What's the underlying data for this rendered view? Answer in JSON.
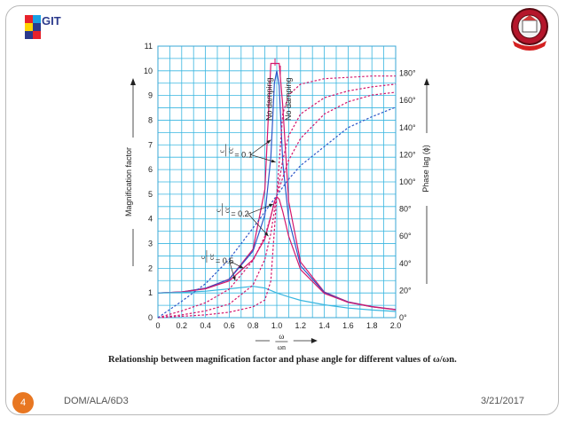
{
  "slide": {
    "number": "4",
    "footer_left": "DOM/ALA/6D3",
    "footer_date": "3/21/2017",
    "caption": "Relationship between magnification factor and phase angle for different values of ω/ωn."
  },
  "logo": {
    "text": "GIT"
  },
  "colors": {
    "grid": "#38b6e0",
    "magenta": "#d4176c",
    "blue": "#2d57c8",
    "accent": "#e87722"
  },
  "chart_data": {
    "type": "line",
    "xlabel_num": "ω",
    "xlabel_den": "ωn",
    "ylabel_left": "Magnification factor",
    "ylabel_right": "Phase lag (ϕ)",
    "xlim": [
      0,
      2.0
    ],
    "ylim_left": [
      0,
      11
    ],
    "ylim_right": [
      0,
      200
    ],
    "x_ticks": [
      "0",
      "0.2",
      "0.4",
      "0.6",
      "0.8",
      "1.0",
      "1.2",
      "1.4",
      "1.6",
      "1.8",
      "2.0"
    ],
    "y_ticks_left": [
      "0",
      "1",
      "2",
      "3",
      "4",
      "5",
      "6",
      "7",
      "8",
      "9",
      "10",
      "11"
    ],
    "y_ticks_right": [
      "0°",
      "20°",
      "40°",
      "60°",
      "80°",
      "100°",
      "120°",
      "140°",
      "160°",
      "180°"
    ],
    "grid": true,
    "annotations": {
      "no_damping_1": "No damping",
      "no_damping_2": "No damping",
      "damp_01": "= 0.1",
      "damp_02": "= 0.2",
      "damp_05": "= 0.5",
      "frac_num": "c",
      "frac_den": "cc"
    },
    "series": [
      {
        "kind": "magnification",
        "zeta": 0.05,
        "color": "#d4176c",
        "x": [
          0,
          0.2,
          0.4,
          0.6,
          0.8,
          0.9,
          0.95,
          0.98,
          1.0,
          1.02,
          1.05,
          1.1,
          1.2,
          1.4,
          1.6,
          1.8,
          2.0
        ],
        "y": [
          1.0,
          1.04,
          1.19,
          1.56,
          2.77,
          5.2,
          10.3,
          10.3,
          10.3,
          10.3,
          8.6,
          4.7,
          2.25,
          1.04,
          0.64,
          0.45,
          0.33
        ]
      },
      {
        "kind": "magnification",
        "zeta": 0.1,
        "color": "#2d57c8",
        "x": [
          0,
          0.2,
          0.4,
          0.6,
          0.8,
          0.9,
          0.95,
          0.98,
          1.0,
          1.02,
          1.05,
          1.1,
          1.2,
          1.4,
          1.6,
          1.8,
          2.0
        ],
        "y": [
          1.0,
          1.04,
          1.19,
          1.55,
          2.7,
          4.16,
          6.5,
          9.5,
          10.0,
          9.4,
          6.3,
          4.0,
          2.1,
          1.02,
          0.63,
          0.44,
          0.33
        ]
      },
      {
        "kind": "magnification",
        "zeta": 0.2,
        "color": "#d4176c",
        "x": [
          0,
          0.2,
          0.4,
          0.6,
          0.8,
          0.9,
          0.95,
          0.98,
          1.0,
          1.02,
          1.05,
          1.1,
          1.2,
          1.4,
          1.6,
          1.8,
          2.0
        ],
        "y": [
          1.0,
          1.04,
          1.17,
          1.49,
          2.35,
          3.2,
          4.1,
          4.7,
          4.9,
          4.8,
          4.3,
          3.3,
          1.95,
          0.98,
          0.62,
          0.44,
          0.32
        ]
      },
      {
        "kind": "magnification",
        "zeta": 0.5,
        "color": "#38b6e0",
        "x": [
          0,
          0.2,
          0.4,
          0.6,
          0.8,
          0.9,
          1.0,
          1.1,
          1.2,
          1.4,
          1.6,
          1.8,
          2.0
        ],
        "y": [
          1.0,
          1.02,
          1.07,
          1.17,
          1.27,
          1.2,
          1.0,
          0.84,
          0.7,
          0.52,
          0.39,
          0.31,
          0.25
        ]
      },
      {
        "kind": "phase",
        "zeta": 0.05,
        "color": "#d4176c",
        "x": [
          0,
          0.4,
          0.6,
          0.8,
          0.9,
          0.95,
          1.0,
          1.05,
          1.1,
          1.2,
          1.4,
          1.6,
          1.8,
          2.0
        ],
        "y": [
          0,
          2,
          4,
          8,
          13,
          27,
          90,
          150,
          164,
          172,
          176,
          177,
          178,
          178
        ]
      },
      {
        "kind": "phase",
        "zeta": 0.1,
        "color": "#d4176c",
        "x": [
          0,
          0.2,
          0.4,
          0.6,
          0.8,
          0.9,
          0.95,
          1.0,
          1.05,
          1.1,
          1.2,
          1.4,
          1.6,
          1.8,
          2.0
        ],
        "y": [
          0,
          2,
          5,
          10,
          24,
          43,
          62,
          90,
          116,
          134,
          150,
          162,
          167,
          170,
          172
        ]
      },
      {
        "kind": "phase",
        "zeta": 0.2,
        "color": "#d4176c",
        "x": [
          0,
          0.2,
          0.4,
          0.6,
          0.8,
          0.9,
          1.0,
          1.1,
          1.2,
          1.4,
          1.6,
          1.8,
          2.0
        ],
        "y": [
          0,
          5,
          11,
          21,
          42,
          60,
          90,
          116,
          132,
          150,
          159,
          164,
          166
        ]
      },
      {
        "kind": "phase",
        "zeta": 0.5,
        "color": "#2d57c8",
        "x": [
          0,
          0.2,
          0.4,
          0.6,
          0.8,
          0.9,
          1.0,
          1.1,
          1.2,
          1.4,
          1.6,
          1.8,
          2.0
        ],
        "y": [
          0,
          12,
          25,
          43,
          66,
          78,
          90,
          102,
          112,
          126,
          140,
          148,
          155
        ]
      }
    ]
  }
}
